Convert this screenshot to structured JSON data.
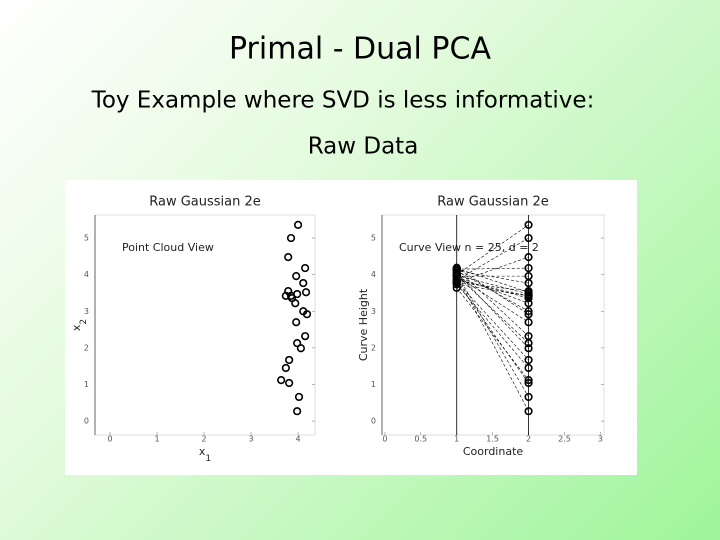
{
  "header": {
    "title": "Primal - Dual PCA",
    "subtitle": "Toy Example where SVD is less informative:",
    "section": "Raw Data"
  },
  "chart_data": [
    {
      "type": "scatter",
      "title": "Raw Gaussian 2e",
      "annotation": "Point Cloud View",
      "xlabel": "x",
      "xlabel_sub": "1",
      "ylabel": "x",
      "ylabel_sub": "2",
      "x": [
        4.0,
        3.85,
        3.79,
        4.15,
        3.96,
        4.11,
        3.79,
        4.17,
        3.74,
        3.85,
        3.98,
        3.94,
        4.11,
        4.19,
        3.96,
        4.15,
        3.98,
        4.06,
        3.81,
        3.74,
        3.64,
        3.81,
        4.02,
        3.98,
        3.87
      ],
      "y": [
        5.36,
        5.0,
        4.48,
        4.18,
        3.96,
        3.77,
        3.55,
        3.52,
        3.42,
        3.42,
        3.47,
        3.22,
        3.0,
        2.92,
        2.7,
        2.32,
        2.13,
        1.99,
        1.67,
        1.45,
        1.12,
        1.04,
        0.66,
        0.27,
        3.36
      ],
      "color": "#000000",
      "xlim": [
        -0.32,
        4.36
      ],
      "ylim": [
        -0.38,
        5.63
      ],
      "xticks": [
        0,
        1,
        2,
        3,
        4
      ],
      "yticks": [
        0,
        1,
        2,
        3,
        4,
        5
      ]
    },
    {
      "type": "parallel",
      "title": "Raw Gaussian 2e",
      "annotation": "Curve View n = 25, d = 2",
      "xlabel": "Coordinate",
      "ylabel": "Curve Height",
      "coordinates": [
        1,
        2
      ],
      "color": "#000000",
      "xlim": [
        -0.04,
        3.05
      ],
      "ylim": [
        -0.38,
        5.63
      ],
      "xticks": [
        0,
        0.5,
        1,
        1.5,
        2,
        2.5,
        3
      ],
      "yticks": [
        0,
        1,
        2,
        3,
        4,
        5
      ]
    }
  ]
}
